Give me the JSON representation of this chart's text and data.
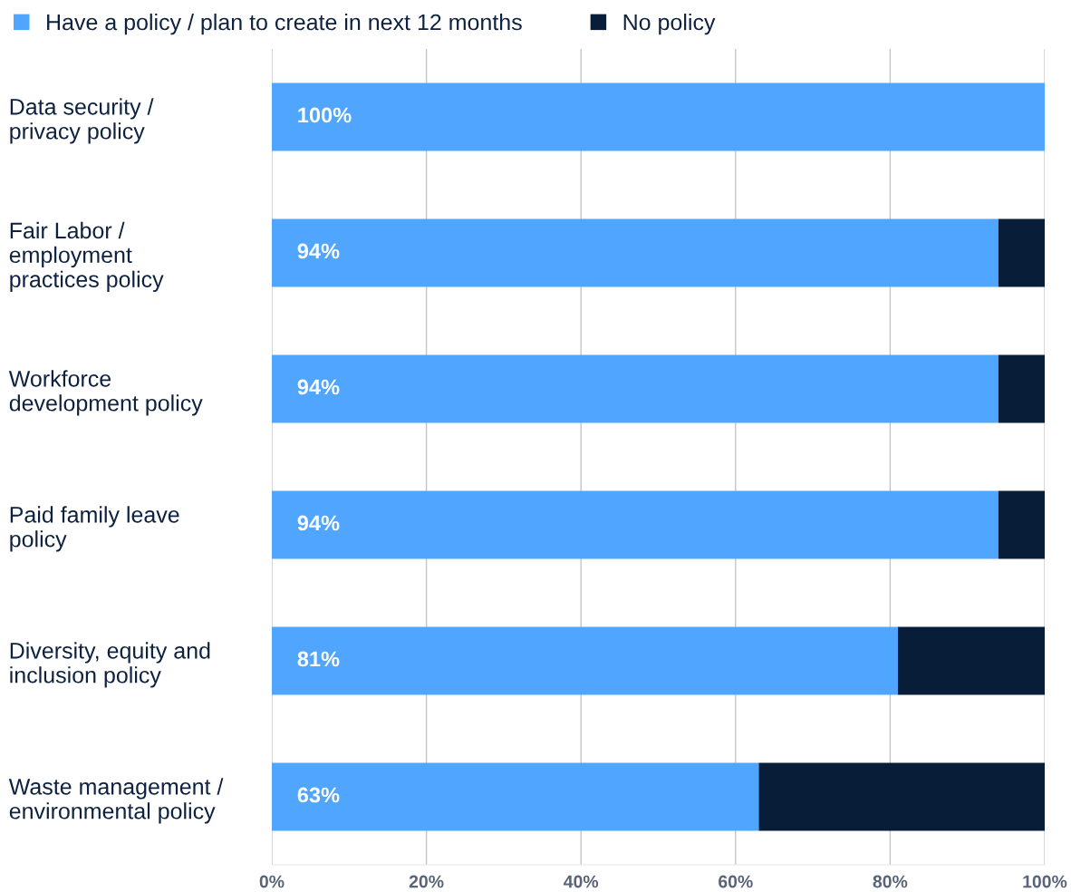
{
  "chart_data": {
    "type": "bar",
    "orientation": "horizontal",
    "stacked": true,
    "categories": [
      "Data security /\nprivacy policy",
      "Fair Labor /\nemployment\npractices policy",
      "Workforce\ndevelopment policy",
      "Paid family leave\npolicy",
      "Diversity, equity and\ninclusion policy",
      "Waste management /\nenvironmental policy"
    ],
    "series": [
      {
        "name": "Have a policy / plan to create in next 12 months",
        "color": "#50a5ff",
        "values": [
          100,
          94,
          94,
          94,
          81,
          63
        ],
        "value_labels": [
          "100%",
          "94%",
          "94%",
          "94%",
          "81%",
          "63%"
        ]
      },
      {
        "name": "No policy",
        "color": "#071d38",
        "values": [
          0,
          6,
          6,
          6,
          19,
          37
        ]
      }
    ],
    "xlim": [
      0,
      100
    ],
    "xticks": [
      {
        "value": 0,
        "label": "0%"
      },
      {
        "value": 20,
        "label": "20%"
      },
      {
        "value": 40,
        "label": "40%"
      },
      {
        "value": 60,
        "label": "60%"
      },
      {
        "value": 80,
        "label": "80%"
      },
      {
        "value": 100,
        "label": "100%"
      }
    ],
    "grid": "x",
    "legend": "top left"
  }
}
